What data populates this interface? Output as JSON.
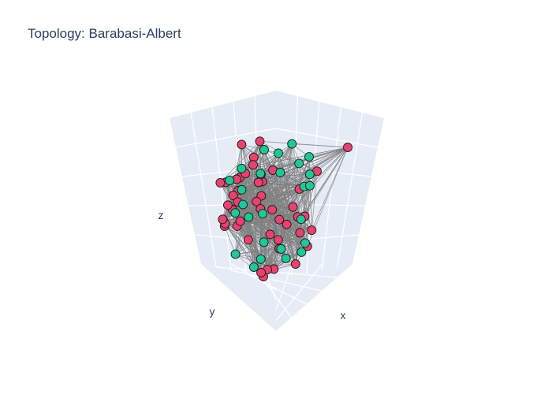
{
  "chart_data": {
    "type": "scatter",
    "subtype": "3d-network-graph",
    "title": "Topology: Barabasi-Albert",
    "axes": {
      "x": {
        "label": "x"
      },
      "y": {
        "label": "y"
      },
      "z": {
        "label": "z"
      }
    },
    "grid": true,
    "show_tick_labels": false,
    "legend": "none",
    "edge_color": "#808080",
    "scene_background": "#e5ecf6",
    "node_groups": [
      {
        "color": "#e8426e",
        "count": 48
      },
      {
        "color": "#1fc898",
        "count": 26
      }
    ]
  }
}
